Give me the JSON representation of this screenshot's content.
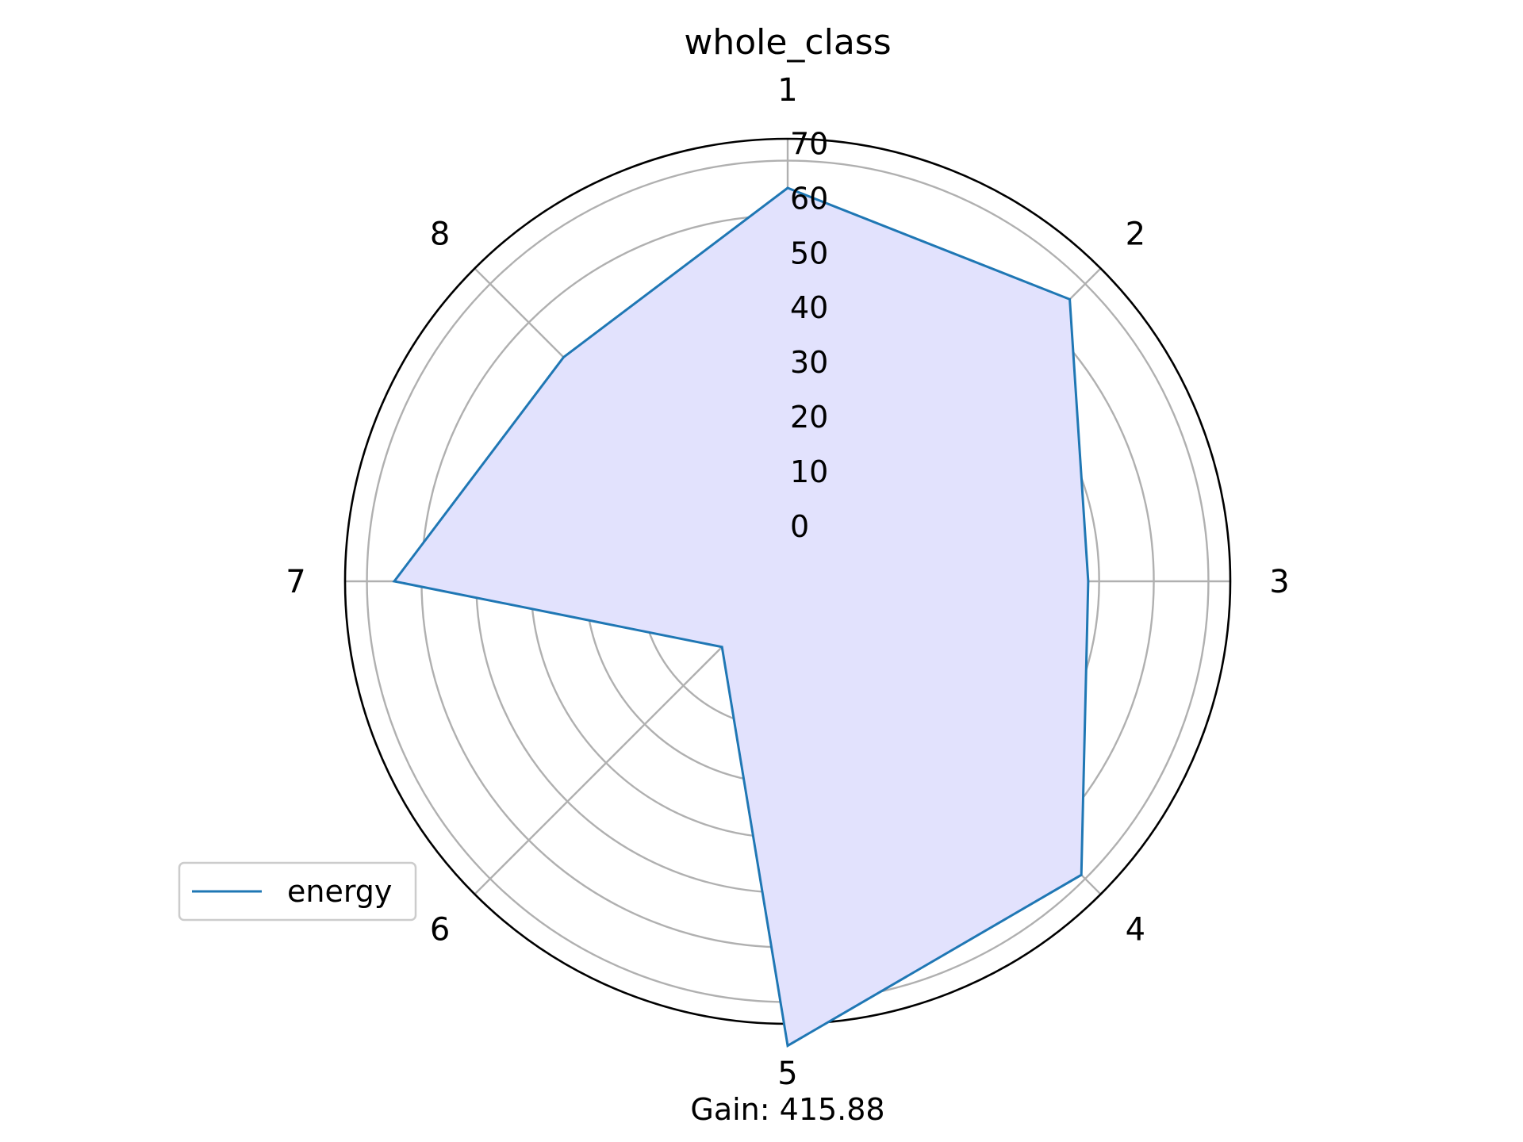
{
  "chart_data": {
    "type": "radar",
    "title": "whole_class",
    "caption": "Gain: 415.88",
    "categories": [
      "1",
      "2",
      "3",
      "4",
      "5",
      "6",
      "7",
      "8"
    ],
    "radial_ticks": [
      "0",
      "10",
      "20",
      "30",
      "40",
      "50",
      "60",
      "70"
    ],
    "radial_tick_values": [
      0,
      10,
      20,
      30,
      40,
      50,
      60,
      70
    ],
    "rlim": [
      -7,
      74
    ],
    "grid": true,
    "legend_position": "lower-left",
    "series": [
      {
        "name": "energy",
        "values": [
          65,
          66,
          48,
          69,
          78,
          10,
          65,
          51
        ],
        "line_color": "#1f77b4",
        "fill_color": "#e2e2fd"
      }
    ],
    "colors": {
      "grid": "#b0b0b0",
      "frame": "#000000"
    }
  }
}
